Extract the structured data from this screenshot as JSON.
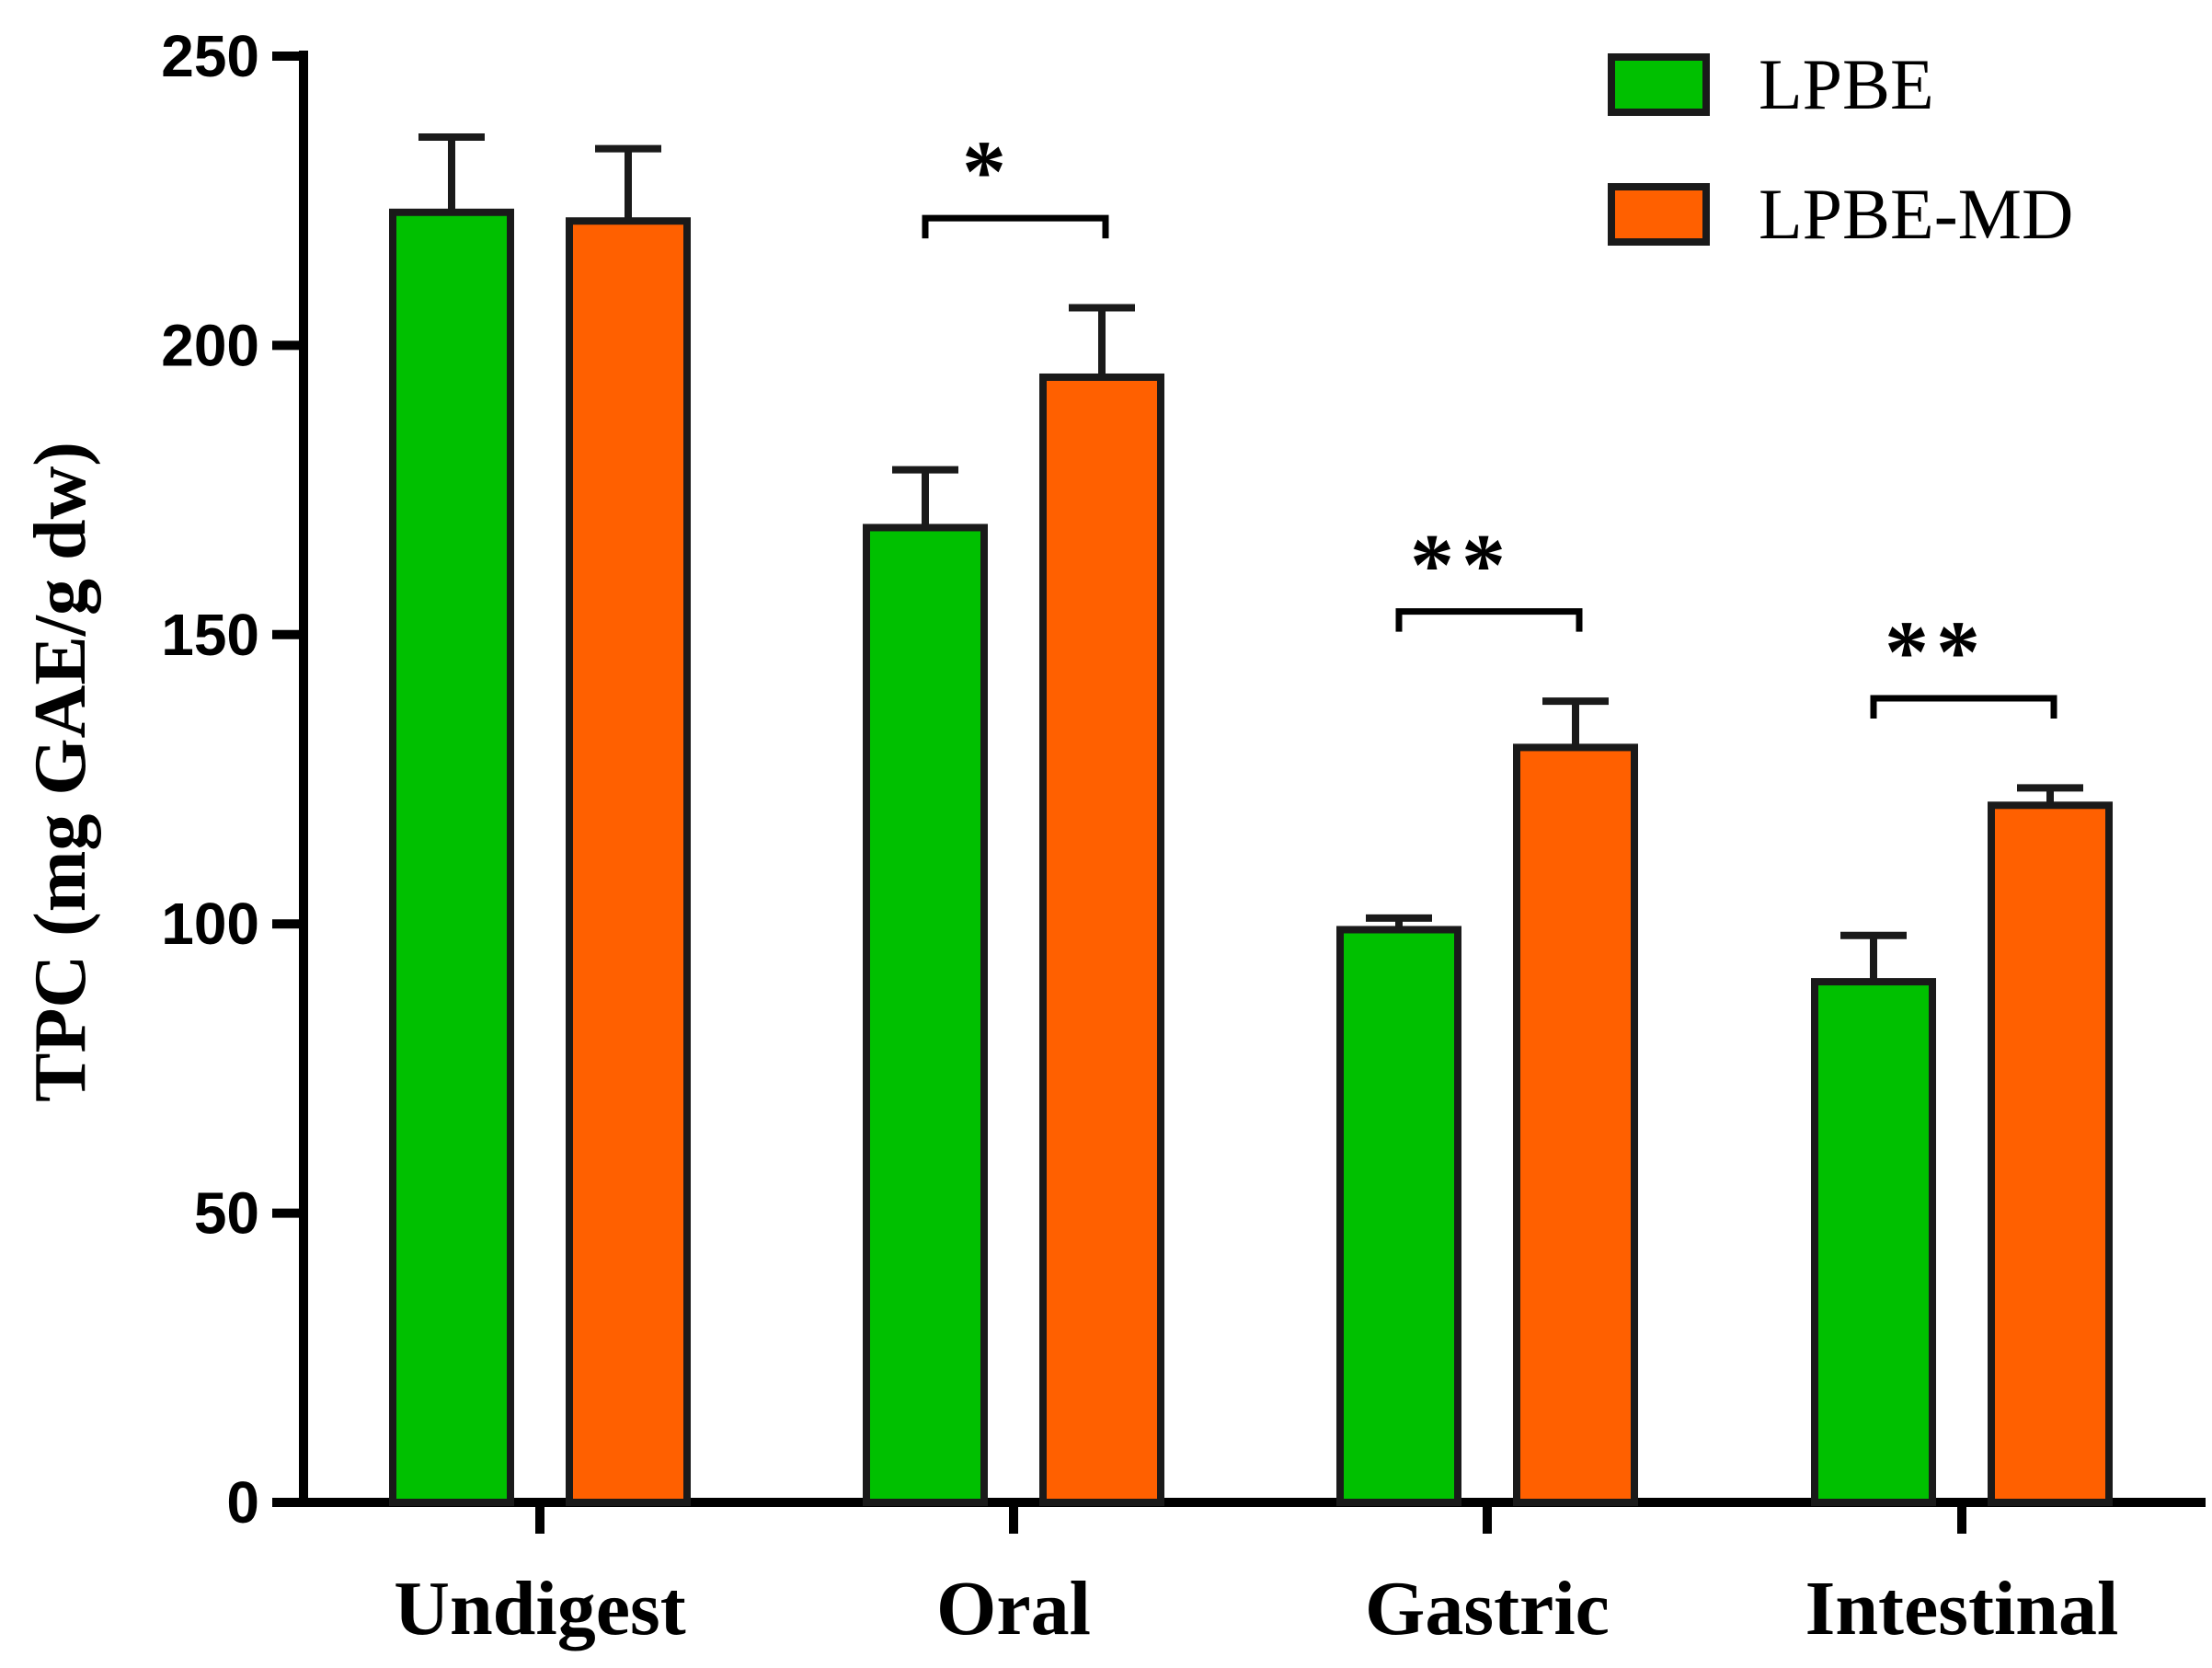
{
  "chart_data": {
    "type": "bar",
    "title": "",
    "xlabel": "",
    "ylabel": "TPC (mg GAE/g dw)",
    "ylim": [
      0,
      250
    ],
    "yticks": [
      0,
      50,
      100,
      150,
      200,
      250
    ],
    "categories": [
      "Undigest",
      "Oral",
      "Gastric",
      "Intestinal"
    ],
    "series": [
      {
        "name": "LPBE",
        "color": "#00c000",
        "values": [
          223,
          168.5,
          99,
          90
        ],
        "errors": [
          13,
          10,
          2,
          8
        ]
      },
      {
        "name": "LPBE-MD",
        "color": "#ff6000",
        "values": [
          221.5,
          194.5,
          130.5,
          120.5
        ],
        "errors": [
          12.5,
          12,
          8,
          3
        ]
      }
    ],
    "significance": [
      {
        "category": "Oral",
        "label": "*",
        "bracket_y": 222
      },
      {
        "category": "Gastric",
        "label": "**",
        "bracket_y": 154
      },
      {
        "category": "Intestinal",
        "label": "**",
        "bracket_y": 139
      }
    ],
    "legend": {
      "position": "top-right"
    },
    "grid": false
  }
}
